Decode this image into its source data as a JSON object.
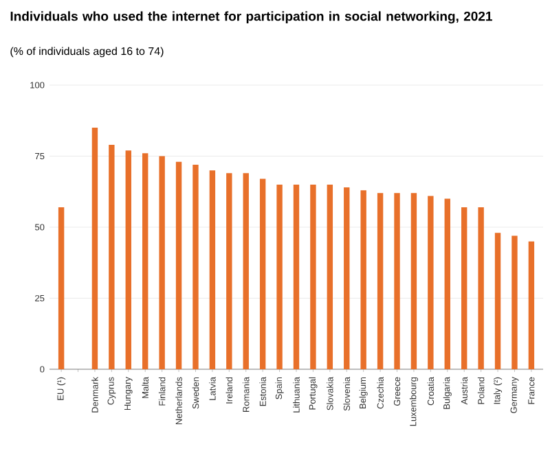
{
  "chart_data": {
    "type": "bar",
    "title": "Individuals who used the internet for participation in social networking, 2021",
    "subtitle": "(% of individuals aged 16 to 74)",
    "categories": [
      "EU (¹)",
      null,
      "Denmark",
      "Cyprus",
      "Hungary",
      "Malta",
      "Finland",
      "Netherlands",
      "Sweden",
      "Latvia",
      "Ireland",
      "Romania",
      "Estonia",
      "Spain",
      "Lithuania",
      "Portugal",
      "Slovakia",
      "Slovenia",
      "Belgium",
      "Czechia",
      "Greece",
      "Luxembourg",
      "Croatia",
      "Bulgaria",
      "Austria",
      "Poland",
      "Italy (²)",
      "Germany",
      "France"
    ],
    "values": [
      57,
      null,
      85,
      79,
      77,
      76,
      75,
      73,
      72,
      70,
      69,
      69,
      67,
      65,
      65,
      65,
      65,
      64,
      63,
      62,
      62,
      62,
      61,
      60,
      57,
      57,
      48,
      47,
      45
    ],
    "color": "#e8702a",
    "ylim": [
      0,
      100
    ],
    "yticks": [
      0,
      25,
      50,
      75,
      100
    ],
    "grid": "y"
  }
}
